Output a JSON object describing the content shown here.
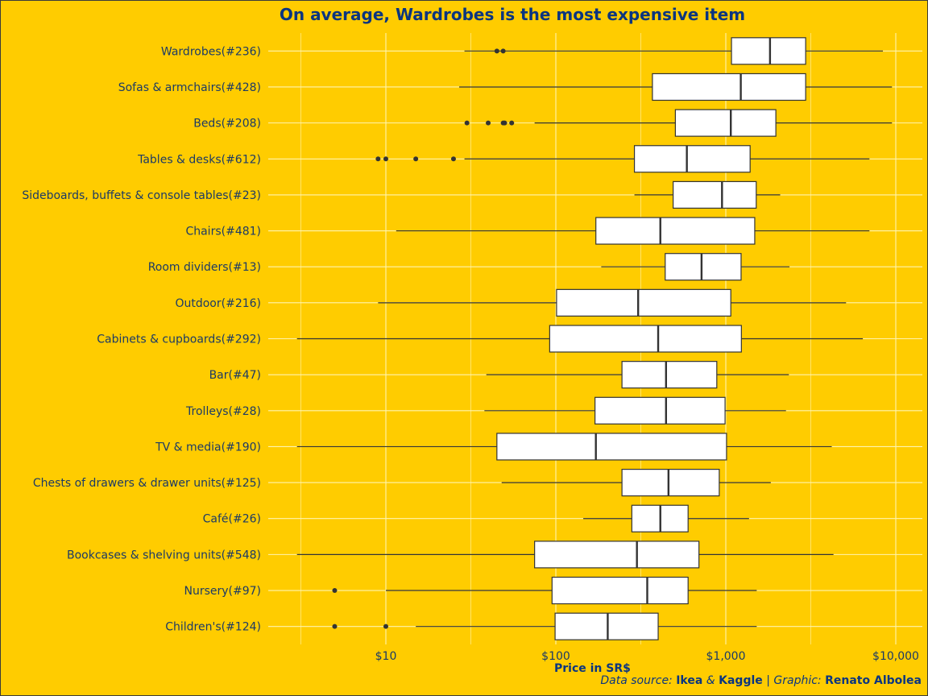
{
  "chart_data": {
    "type": "boxplot",
    "title": "On average, Wardrobes is the most expensive item",
    "xlabel": "Price in SR$",
    "x_scale": "log10",
    "xlim": [
      2.8,
      14000
    ],
    "x_ticks": [
      10,
      100,
      1000,
      10000
    ],
    "x_tick_labels": [
      "$10",
      "$100",
      "$1,000",
      "$10,000"
    ],
    "grid": true,
    "categories": [
      {
        "label": "Wardrobes(#236)",
        "whisker_low": 29,
        "q1": 1080,
        "median": 1820,
        "q3": 2950,
        "whisker_high": 8400,
        "outliers": [
          45,
          49
        ]
      },
      {
        "label": "Sofas & armchairs(#428)",
        "whisker_low": 27,
        "q1": 370,
        "median": 1225,
        "q3": 2950,
        "whisker_high": 9500,
        "outliers": []
      },
      {
        "label": "Beds(#208)",
        "whisker_low": 75,
        "q1": 505,
        "median": 1070,
        "q3": 1970,
        "whisker_high": 9500,
        "outliers": [
          30,
          40,
          49,
          50,
          55
        ]
      },
      {
        "label": "Tables & desks(#612)",
        "whisker_low": 29,
        "q1": 290,
        "median": 590,
        "q3": 1390,
        "whisker_high": 7000,
        "outliers": [
          9,
          10,
          15,
          25
        ]
      },
      {
        "label": "Sideboards, buffets & console tables(#23)",
        "whisker_low": 290,
        "q1": 490,
        "median": 950,
        "q3": 1510,
        "whisker_high": 2090,
        "outliers": []
      },
      {
        "label": "Chairs(#481)",
        "whisker_low": 11.5,
        "q1": 172,
        "median": 412,
        "q3": 1480,
        "whisker_high": 7000,
        "outliers": []
      },
      {
        "label": "Room dividers(#13)",
        "whisker_low": 185,
        "q1": 440,
        "median": 720,
        "q3": 1230,
        "whisker_high": 2370,
        "outliers": []
      },
      {
        "label": "Outdoor(#216)",
        "whisker_low": 9,
        "q1": 101,
        "median": 305,
        "q3": 1070,
        "whisker_high": 5100,
        "outliers": []
      },
      {
        "label": "Cabinets & cupboards(#292)",
        "whisker_low": 3,
        "q1": 92,
        "median": 400,
        "q3": 1235,
        "whisker_high": 6400,
        "outliers": []
      },
      {
        "label": "Bar(#47)",
        "whisker_low": 39,
        "q1": 245,
        "median": 445,
        "q3": 885,
        "whisker_high": 2350,
        "outliers": []
      },
      {
        "label": "Trolleys(#28)",
        "whisker_low": 38,
        "q1": 170,
        "median": 445,
        "q3": 990,
        "whisker_high": 2260,
        "outliers": []
      },
      {
        "label": "TV & media(#190)",
        "whisker_low": 3,
        "q1": 45,
        "median": 172,
        "q3": 1010,
        "whisker_high": 4200,
        "outliers": []
      },
      {
        "label": "Chests of drawers & drawer units(#125)",
        "whisker_low": 48,
        "q1": 245,
        "median": 460,
        "q3": 915,
        "whisker_high": 1840,
        "outliers": []
      },
      {
        "label": "Café(#26)",
        "whisker_low": 145,
        "q1": 280,
        "median": 412,
        "q3": 600,
        "whisker_high": 1370,
        "outliers": []
      },
      {
        "label": "Bookcases & shelving units(#548)",
        "whisker_low": 3,
        "q1": 75,
        "median": 300,
        "q3": 695,
        "whisker_high": 4300,
        "outliers": []
      },
      {
        "label": "Nursery(#97)",
        "whisker_low": 10,
        "q1": 95,
        "median": 345,
        "q3": 600,
        "whisker_high": 1520,
        "outliers": [
          5
        ]
      },
      {
        "label": "Children's(#124)",
        "whisker_low": 15,
        "q1": 99,
        "median": 202,
        "q3": 400,
        "whisker_high": 1520,
        "outliers": [
          5,
          10
        ]
      }
    ]
  },
  "caption": {
    "prefix": "Data source: ",
    "src1": "Ikea",
    "amp": " & ",
    "src2": "Kaggle",
    "sep": " | Graphic: ",
    "author": "Renato Albolea"
  },
  "colors": {
    "background": "#FFCC00",
    "box_fill": "#FFFFFF",
    "box_stroke": "#333333",
    "grid": "#FFF4B0",
    "text": "#0A3580"
  }
}
